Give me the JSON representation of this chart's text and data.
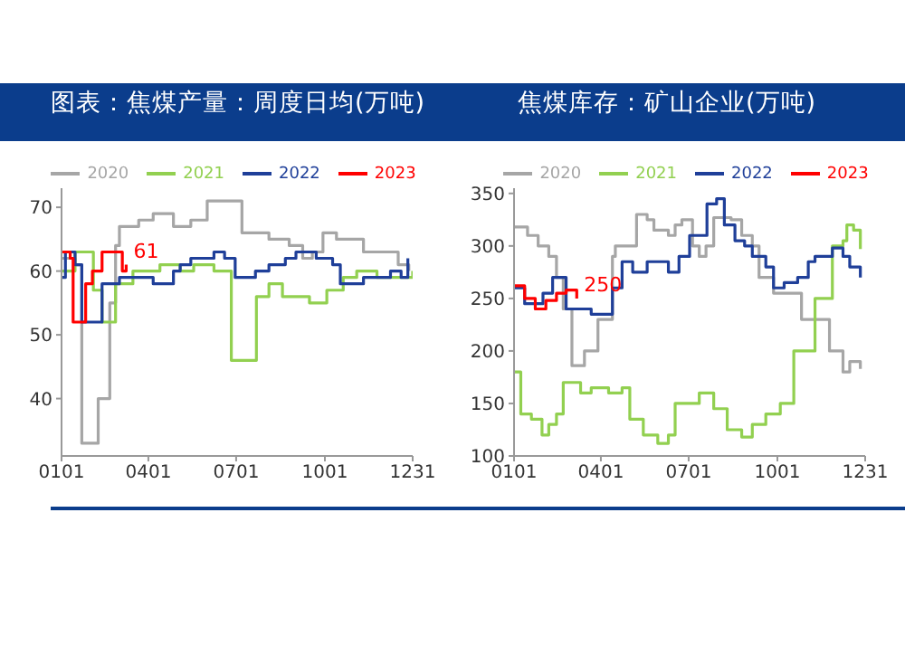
{
  "chart_data": [
    {
      "type": "step",
      "title": "图表：焦煤产量：周度日均(万吨)",
      "legend": "top",
      "xlim": [
        "--01-01",
        "--12-31"
      ],
      "xticks": [
        {
          "value": "--01-01",
          "label": "0101"
        },
        {
          "value": "--04-01",
          "label": "0401"
        },
        {
          "value": "--07-01",
          "label": "0701"
        },
        {
          "value": "--10-01",
          "label": "1001"
        },
        {
          "value": "--12-31",
          "label": "1231"
        }
      ],
      "ylim": [
        31,
        73
      ],
      "yticks": [
        40,
        50,
        60,
        70
      ],
      "series": [
        {
          "name": "2020",
          "color": "#a6a6a6",
          "x": [
            "--01-01",
            "--01-15",
            "--01-22",
            "--02-05",
            "--02-08",
            "--02-20",
            "--02-26",
            "--03-02",
            "--03-22",
            "--04-06",
            "--04-27",
            "--05-15",
            "--06-01",
            "--06-26",
            "--07-07",
            "--08-04",
            "--08-25",
            "--09-08",
            "--09-18",
            "--09-29",
            "--10-13",
            "--11-10",
            "--12-02",
            "--12-16",
            "--12-27"
          ],
          "values": [
            62,
            61,
            33,
            33,
            40,
            55,
            64,
            67,
            68,
            69,
            67,
            68,
            71,
            71,
            66,
            65,
            64,
            62,
            63,
            66,
            65,
            63,
            63,
            61,
            60
          ]
        },
        {
          "name": "2021",
          "color": "#92d050",
          "x": [
            "--01-01",
            "--01-15",
            "--01-31",
            "--02-03",
            "--02-12",
            "--02-26",
            "--03-16",
            "--04-13",
            "--05-04",
            "--05-18",
            "--06-08",
            "--06-22",
            "--06-26",
            "--07-20",
            "--07-22",
            "--08-04",
            "--08-18",
            "--09-15",
            "--10-03",
            "--10-20",
            "--11-03",
            "--11-24",
            "--12-31"
          ],
          "values": [
            60,
            63,
            63,
            57,
            52,
            58,
            60,
            61,
            60,
            61,
            60,
            60,
            46,
            46,
            56,
            58,
            56,
            55,
            57,
            59,
            60,
            59,
            60
          ]
        },
        {
          "name": "2022",
          "color": "#1f3f99",
          "x": [
            "--01-01",
            "--01-05",
            "--01-15",
            "--01-22",
            "--02-09",
            "--02-12",
            "--03-02",
            "--03-30",
            "--04-06",
            "--04-27",
            "--05-04",
            "--05-15",
            "--06-08",
            "--06-19",
            "--06-30",
            "--07-21",
            "--08-04",
            "--08-21",
            "--09-01",
            "--09-22",
            "--10-09",
            "--10-17",
            "--11-10",
            "--12-08",
            "--12-19",
            "--12-26"
          ],
          "values": [
            59,
            63,
            61,
            52,
            52,
            58,
            59,
            59,
            58,
            60,
            61,
            62,
            63,
            62,
            59,
            60,
            61,
            62,
            63,
            62,
            61,
            58,
            59,
            60,
            59,
            62
          ]
        },
        {
          "name": "2023",
          "color": "#ff0000",
          "x": [
            "--01-01",
            "--01-10",
            "--01-13",
            "--01-17",
            "--01-26",
            "--02-02",
            "--02-12",
            "--02-21",
            "--03-05",
            "--03-09"
          ],
          "values": [
            63,
            62,
            52,
            52,
            58,
            60,
            63,
            63,
            60,
            61
          ],
          "value_labels": [
            null,
            null,
            null,
            null,
            null,
            null,
            null,
            null,
            null,
            "61"
          ]
        }
      ]
    },
    {
      "type": "step",
      "title": "焦煤库存：矿山企业(万吨)",
      "legend": "top",
      "xlim": [
        "--01-01",
        "--12-31"
      ],
      "xticks": [
        {
          "value": "--01-01",
          "label": "0101"
        },
        {
          "value": "--04-01",
          "label": "0401"
        },
        {
          "value": "--07-01",
          "label": "0701"
        },
        {
          "value": "--10-01",
          "label": "1001"
        },
        {
          "value": "--12-31",
          "label": "1231"
        }
      ],
      "ylim": [
        100,
        355
      ],
      "yticks": [
        100,
        150,
        200,
        250,
        300,
        350
      ],
      "series": [
        {
          "name": "2020",
          "color": "#a6a6a6",
          "x": [
            "--01-01",
            "--01-15",
            "--01-26",
            "--02-06",
            "--02-14",
            "--02-21",
            "--03-02",
            "--03-15",
            "--03-29",
            "--04-13",
            "--04-16",
            "--05-08",
            "--05-19",
            "--05-26",
            "--06-10",
            "--06-17",
            "--06-24",
            "--07-05",
            "--07-12",
            "--07-19",
            "--07-27",
            "--08-14",
            "--08-25",
            "--09-05",
            "--09-12",
            "--09-27",
            "--10-26",
            "--11-24",
            "--12-08",
            "--12-15",
            "--12-26"
          ],
          "values": [
            318,
            310,
            300,
            290,
            270,
            240,
            186,
            200,
            230,
            290,
            300,
            330,
            325,
            315,
            310,
            320,
            325,
            300,
            290,
            300,
            327,
            325,
            310,
            300,
            270,
            255,
            230,
            200,
            180,
            190,
            183
          ]
        },
        {
          "name": "2021",
          "color": "#92d050",
          "x": [
            "--01-01",
            "--01-08",
            "--01-19",
            "--01-30",
            "--02-06",
            "--02-14",
            "--02-21",
            "--03-11",
            "--03-22",
            "--04-09",
            "--04-23",
            "--05-01",
            "--05-15",
            "--05-30",
            "--06-10",
            "--06-17",
            "--06-28",
            "--07-12",
            "--07-27",
            "--08-10",
            "--08-25",
            "--09-05",
            "--09-19",
            "--10-04",
            "--10-18",
            "--11-09",
            "--11-27",
            "--12-08",
            "--12-12",
            "--12-19",
            "--12-26"
          ],
          "values": [
            180,
            140,
            135,
            120,
            130,
            140,
            170,
            160,
            165,
            160,
            165,
            135,
            120,
            112,
            120,
            150,
            150,
            160,
            145,
            125,
            118,
            130,
            140,
            150,
            200,
            250,
            300,
            305,
            320,
            315,
            297
          ]
        },
        {
          "name": "2022",
          "color": "#1f3f99",
          "x": [
            "--01-01",
            "--01-12",
            "--01-31",
            "--02-10",
            "--02-24",
            "--03-22",
            "--04-13",
            "--04-23",
            "--05-04",
            "--05-19",
            "--06-10",
            "--06-21",
            "--07-02",
            "--07-20",
            "--07-30",
            "--08-07",
            "--08-18",
            "--08-28",
            "--09-05",
            "--09-19",
            "--09-27",
            "--10-08",
            "--10-22",
            "--11-02",
            "--11-09",
            "--11-19",
            "--11-27",
            "--12-08",
            "--12-15",
            "--12-26"
          ],
          "values": [
            260,
            245,
            255,
            270,
            240,
            235,
            260,
            285,
            275,
            285,
            275,
            290,
            310,
            340,
            345,
            320,
            305,
            300,
            290,
            280,
            260,
            265,
            270,
            285,
            290,
            290,
            298,
            290,
            280,
            270
          ]
        },
        {
          "name": "2023",
          "color": "#ff0000",
          "x": [
            "--01-01",
            "--01-12",
            "--01-23",
            "--02-03",
            "--02-14",
            "--02-24",
            "--03-07"
          ],
          "values": [
            262,
            250,
            240,
            248,
            255,
            258,
            250
          ],
          "value_labels": [
            null,
            null,
            null,
            null,
            null,
            null,
            "250"
          ]
        }
      ]
    }
  ]
}
